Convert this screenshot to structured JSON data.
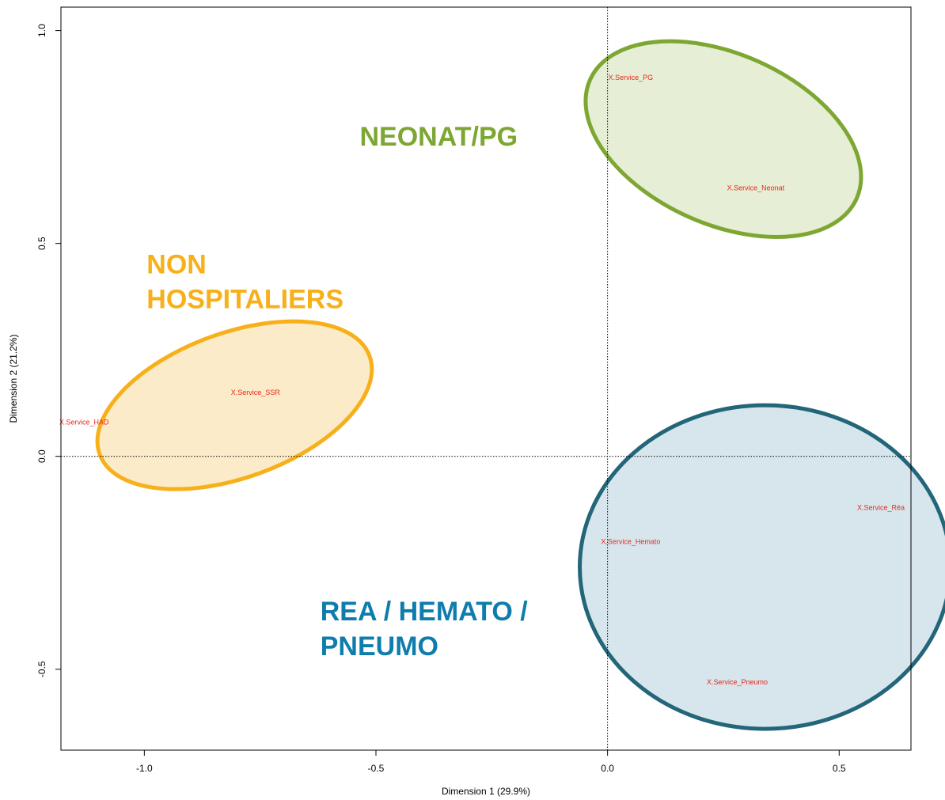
{
  "chart_data": {
    "type": "scatter",
    "xlabel": "Dimension 1 (29.9%)",
    "ylabel": "Dimension 2 (21.2%)",
    "xlim": [
      -1.18,
      0.655
    ],
    "ylim": [
      -0.69,
      1.055
    ],
    "x_ticks": [
      {
        "value": -1.0,
        "label": "-1.0"
      },
      {
        "value": -0.5,
        "label": "-0.5"
      },
      {
        "value": 0.0,
        "label": "0.0"
      },
      {
        "value": 0.5,
        "label": "0.5"
      }
    ],
    "y_ticks": [
      {
        "value": -0.5,
        "label": "-0.5"
      },
      {
        "value": 0.0,
        "label": "0.0"
      },
      {
        "value": 0.5,
        "label": "0.5"
      },
      {
        "value": 1.0,
        "label": "1.0"
      }
    ],
    "reference_lines": {
      "x": 0,
      "y": 0,
      "style": "dotted"
    },
    "points": [
      {
        "label": "X.Service_PG",
        "x": 0.05,
        "y": 0.89
      },
      {
        "label": "X.Service_Neonat",
        "x": 0.32,
        "y": 0.63
      },
      {
        "label": "X.Service_SSR",
        "x": -0.76,
        "y": 0.15
      },
      {
        "label": "X.Service_HAD",
        "x": -1.13,
        "y": 0.08
      },
      {
        "label": "X.Service_Réa",
        "x": 0.59,
        "y": -0.12
      },
      {
        "label": "X.Service_Hemato",
        "x": 0.05,
        "y": -0.2
      },
      {
        "label": "X.Service_Pneumo",
        "x": 0.28,
        "y": -0.53
      }
    ],
    "groups": [
      {
        "label_lines": [
          "NEONAT/PG"
        ],
        "label_anchor": {
          "x": -0.535,
          "y": 0.73
        },
        "text_color": "#7da732",
        "stroke_color": "#7da732",
        "fill_color": "#e6eed5",
        "ellipse": {
          "cx": 0.25,
          "cy": 0.745,
          "rx": 0.315,
          "ry": 0.2,
          "rotation_deg": 24
        }
      },
      {
        "label_lines": [
          "NON",
          "HOSPITALIERS"
        ],
        "label_anchor": {
          "x": -0.995,
          "y": 0.43
        },
        "text_color": "#f7b01a",
        "stroke_color": "#f7b01a",
        "fill_color": "#fcebc8",
        "ellipse": {
          "cx": -0.805,
          "cy": 0.12,
          "rx": 0.31,
          "ry": 0.17,
          "rotation_deg": -20
        }
      },
      {
        "label_lines": [
          "REA / HEMATO /",
          "PNEUMO"
        ],
        "label_anchor": {
          "x": -0.62,
          "y": -0.385
        },
        "text_color": "#0e7dad",
        "stroke_color": "#23667a",
        "fill_color": "#d6e6ec",
        "ellipse": {
          "cx": 0.34,
          "cy": -0.26,
          "rx": 0.4,
          "ry": 0.38,
          "rotation_deg": 0
        }
      }
    ],
    "grid": false,
    "legend": "none"
  }
}
